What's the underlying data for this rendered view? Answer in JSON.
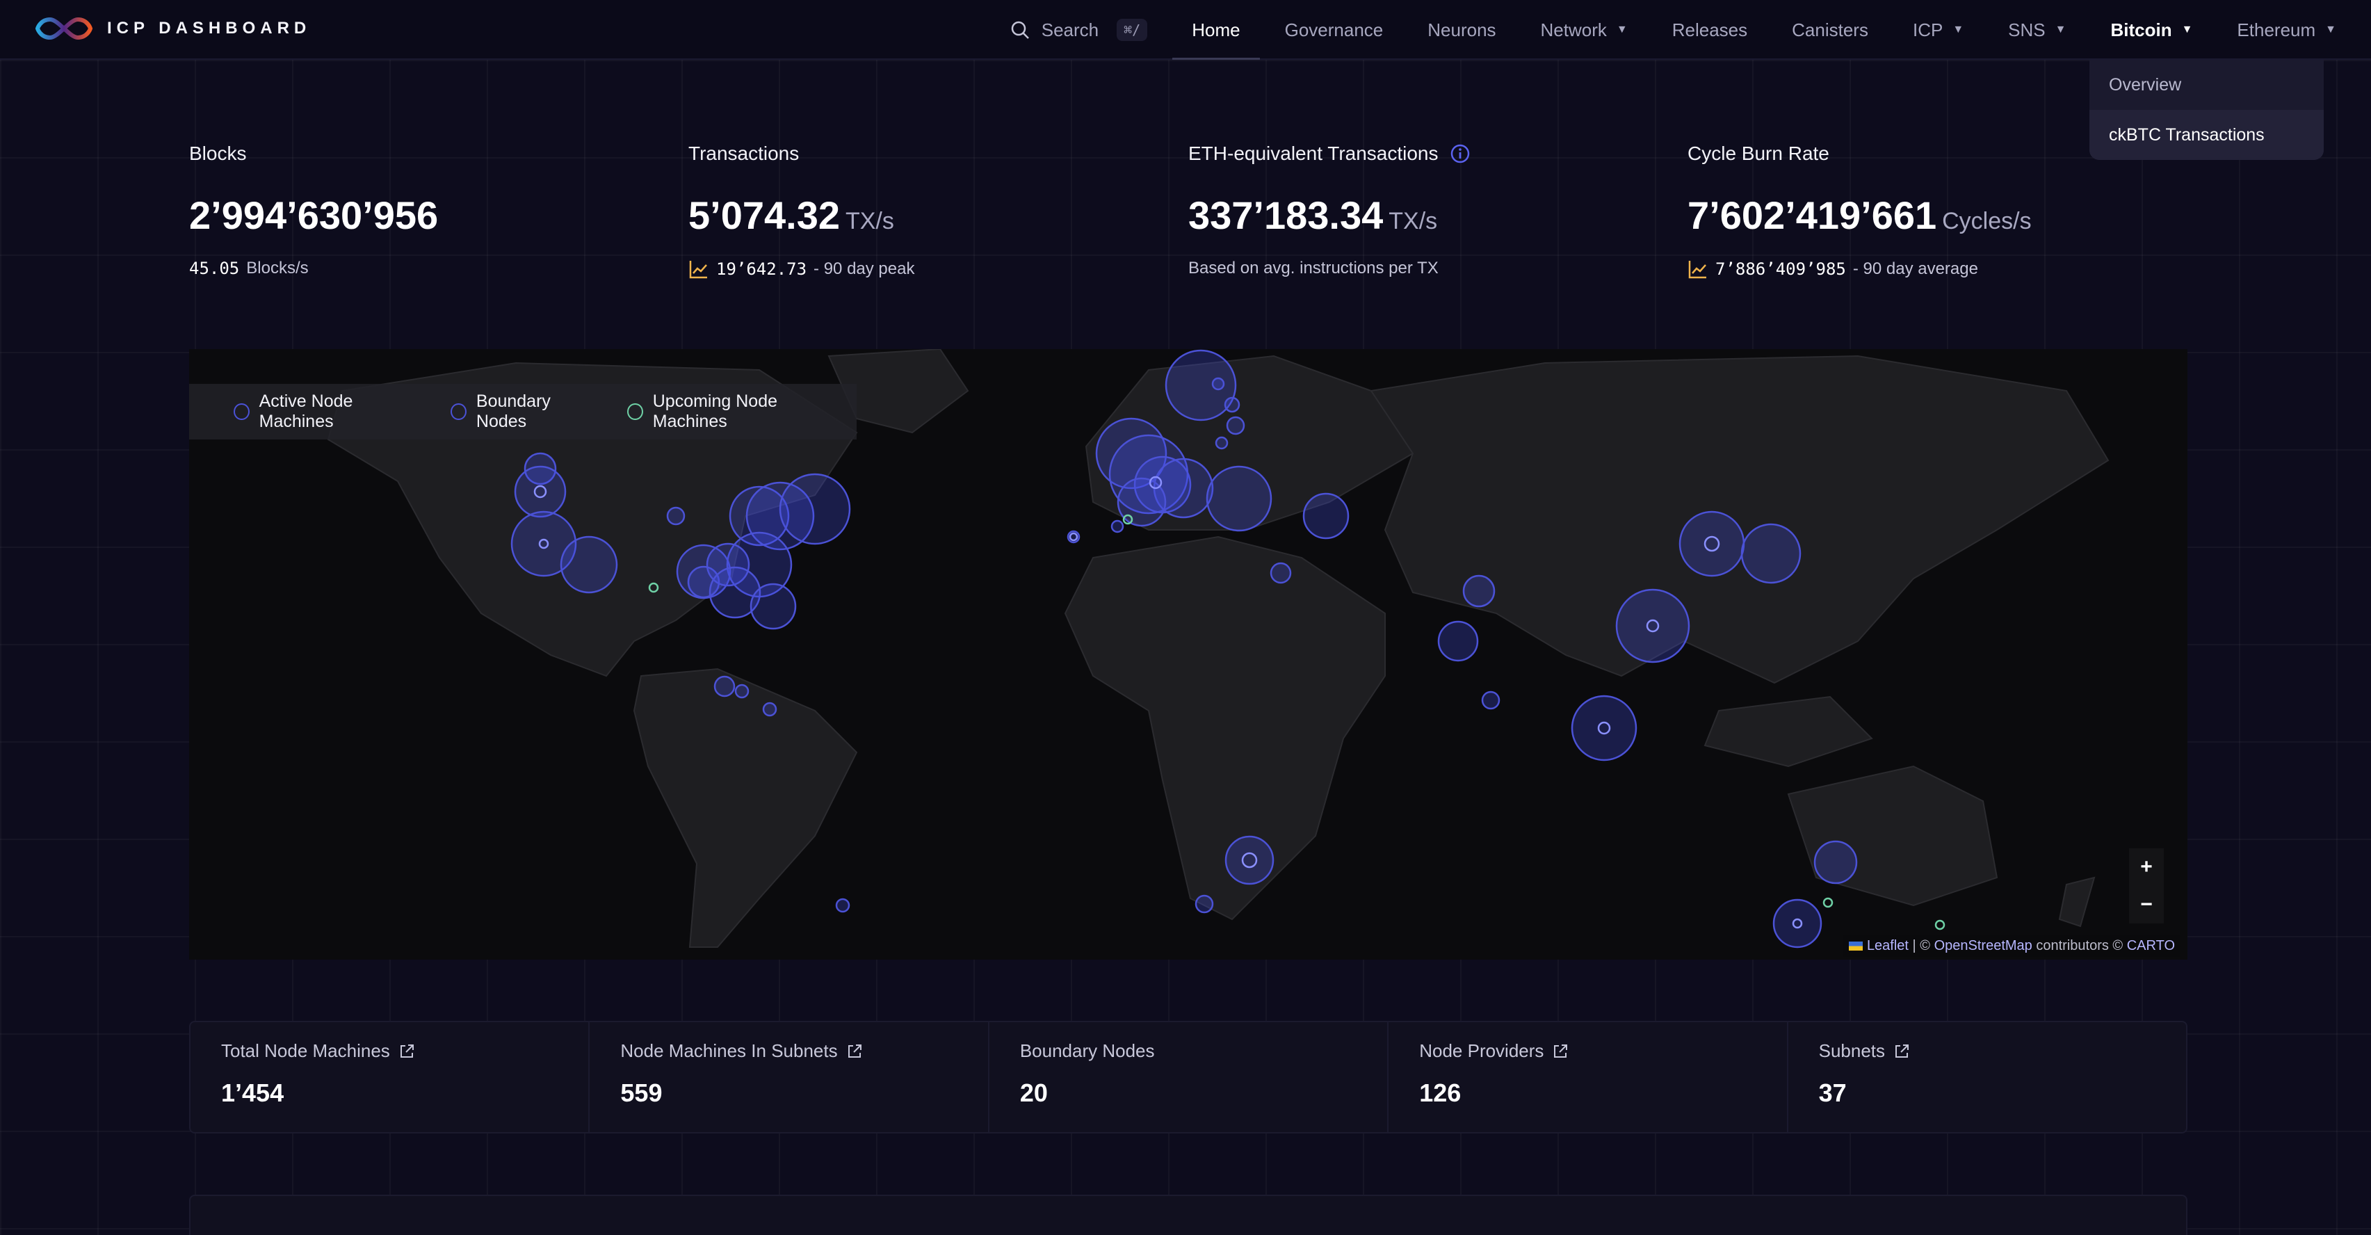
{
  "app": {
    "title": "ICP DASHBOARD"
  },
  "nav": {
    "search_label": "Search",
    "search_shortcut": "⌘/",
    "items": [
      {
        "label": "Home"
      },
      {
        "label": "Governance"
      },
      {
        "label": "Neurons"
      },
      {
        "label": "Network"
      },
      {
        "label": "Releases"
      },
      {
        "label": "Canisters"
      },
      {
        "label": "ICP"
      },
      {
        "label": "SNS"
      },
      {
        "label": "Bitcoin"
      },
      {
        "label": "Ethereum"
      }
    ],
    "active": "Home",
    "open_menu": "Bitcoin"
  },
  "dropdown": {
    "items": [
      {
        "label": "Overview"
      },
      {
        "label": "ckBTC Transactions"
      }
    ]
  },
  "stats": {
    "blocks": {
      "label": "Blocks",
      "value": "2’994’630’956",
      "sub_value": "45.05",
      "sub_label": "Blocks/s"
    },
    "transactions": {
      "label": "Transactions",
      "value": "5’074.32",
      "unit": "TX/s",
      "sub_value": "19’642.73",
      "sub_label": "- 90 day peak"
    },
    "eth_tx": {
      "label": "ETH-equivalent Transactions",
      "value": "337’183.34",
      "unit": "TX/s",
      "sub_label": "Based on avg. instructions per TX"
    },
    "cycle_burn": {
      "label": "Cycle Burn Rate",
      "value": "7’602’419’661",
      "unit": "Cycles/s",
      "sub_value": "7’886’409’985",
      "sub_label": "- 90 day average"
    }
  },
  "map": {
    "legend": [
      {
        "label": "Active Node Machines"
      },
      {
        "label": "Boundary Nodes"
      },
      {
        "label": "Upcoming Node Machines"
      }
    ],
    "zoom_in": "+",
    "zoom_out": "−",
    "attribution": {
      "leaflet": "Leaflet",
      "sep1": " | © ",
      "osm": "OpenStreetMap",
      "mid": " contributors © ",
      "carto": "CARTO"
    }
  },
  "cards": [
    {
      "label": "Total Node Machines",
      "value": "1’454"
    },
    {
      "label": "Node Machines In Subnets",
      "value": "559"
    },
    {
      "label": "Boundary Nodes",
      "value": "20"
    },
    {
      "label": "Node Providers",
      "value": "126"
    },
    {
      "label": "Subnets",
      "value": "37"
    }
  ],
  "colors": {
    "accent": "#4b52d6",
    "upcoming": "#6fd1a6",
    "background": "#0d0c1d"
  }
}
